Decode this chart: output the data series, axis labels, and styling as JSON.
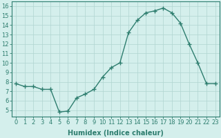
{
  "x": [
    0,
    1,
    2,
    3,
    4,
    5,
    6,
    7,
    8,
    9,
    10,
    11,
    12,
    13,
    14,
    15,
    16,
    17,
    18,
    19,
    20,
    21,
    22,
    23
  ],
  "y": [
    7.8,
    7.5,
    7.5,
    7.2,
    7.2,
    4.8,
    4.9,
    6.3,
    6.7,
    7.2,
    8.5,
    9.5,
    10.0,
    13.2,
    14.5,
    15.3,
    15.5,
    15.8,
    15.3,
    14.2,
    12.0,
    10.0,
    7.8,
    7.8
  ],
  "line_color": "#2d7d6e",
  "marker": "+",
  "marker_size": 4,
  "line_width": 1.0,
  "background_color": "#d4efec",
  "grid_color": "#b0d4d0",
  "xlabel": "Humidex (Indice chaleur)",
  "xlabel_fontsize": 7,
  "tick_fontsize": 6,
  "xlim": [
    -0.5,
    23.5
  ],
  "ylim": [
    4.3,
    16.5
  ],
  "yticks": [
    5,
    6,
    7,
    8,
    9,
    10,
    11,
    12,
    13,
    14,
    15,
    16
  ],
  "xticks": [
    0,
    1,
    2,
    3,
    4,
    5,
    6,
    7,
    8,
    9,
    10,
    11,
    12,
    13,
    14,
    15,
    16,
    17,
    18,
    19,
    20,
    21,
    22,
    23
  ]
}
